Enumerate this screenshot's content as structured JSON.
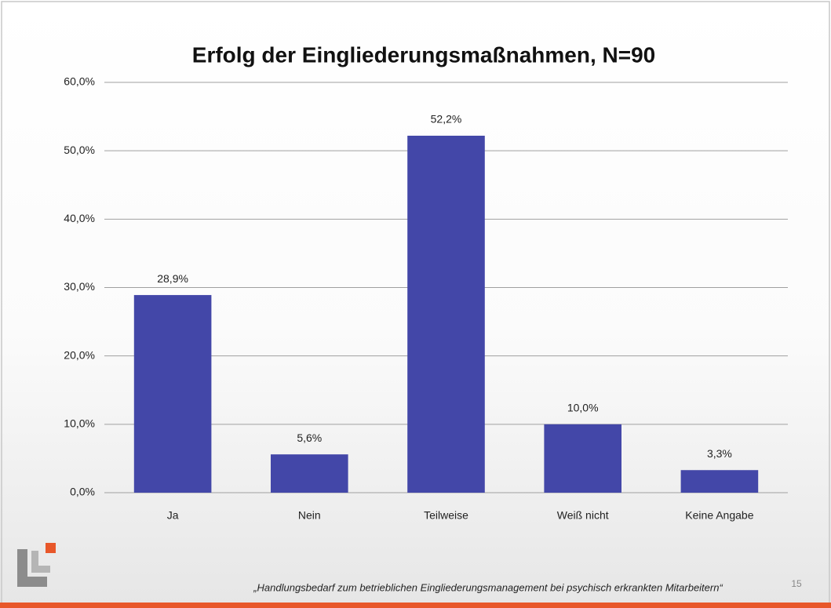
{
  "chart_data": {
    "type": "bar",
    "title": "Erfolg der Eingliederungsmaßnahmen, N=90",
    "categories": [
      "Ja",
      "Nein",
      "Teilweise",
      "Weiß nicht",
      "Keine Angabe"
    ],
    "values": [
      28.9,
      5.6,
      52.2,
      10.0,
      3.3
    ],
    "value_labels": [
      "28,9%",
      "5,6%",
      "52,2%",
      "10,0%",
      "3,3%"
    ],
    "color": "#4347a8",
    "ylim": [
      0,
      60
    ],
    "yticks": [
      {
        "value": 0,
        "label": "0,0%"
      },
      {
        "value": 10,
        "label": "10,0%"
      },
      {
        "value": 20,
        "label": "20,0%"
      },
      {
        "value": 30,
        "label": "30,0%"
      },
      {
        "value": 40,
        "label": "40,0%"
      },
      {
        "value": 50,
        "label": "50,0%"
      },
      {
        "value": 60,
        "label": "60,0%"
      }
    ],
    "grid": true
  },
  "footer": "„Handlungsbedarf zum betrieblichen Eingliederungsmanagement bei psychisch erkrankten Mitarbeitern“",
  "page_number": "15"
}
